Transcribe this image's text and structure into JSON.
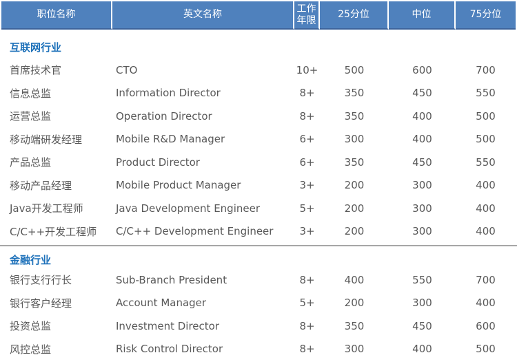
{
  "colors": {
    "header_bg": "#4f81bd",
    "header_text": "#ffffff",
    "header_bottom_border": "#3d649b",
    "section_title_text": "#1c70b9",
    "body_text": "#595959",
    "divider": "#a6a6a6",
    "background": "#ffffff"
  },
  "table": {
    "columns": [
      {
        "label": "职位名称"
      },
      {
        "label": "英文名称"
      },
      {
        "label": "工作年限"
      },
      {
        "label": "25分位"
      },
      {
        "label": "中位"
      },
      {
        "label": "75分位"
      }
    ],
    "sections": [
      {
        "title": "互联网行业",
        "rows": [
          [
            "首席技术官",
            "CTO",
            "10+",
            "500",
            "600",
            "700"
          ],
          [
            "信息总监",
            "Information Director",
            "8+",
            "350",
            "450",
            "550"
          ],
          [
            "运营总监",
            "Operation Director",
            "8+",
            "350",
            "400",
            "500"
          ],
          [
            "移动端研发经理",
            "Mobile R&D Manager",
            "6+",
            "300",
            "400",
            "500"
          ],
          [
            "产品总监",
            "Product Director",
            "6+",
            "350",
            "450",
            "550"
          ],
          [
            "移动产品经理",
            "Mobile Product Manager",
            "3+",
            "200",
            "300",
            "400"
          ],
          [
            "Java开发工程师",
            "Java Development Engineer",
            "5+",
            "200",
            "300",
            "400"
          ],
          [
            "C/C++开发工程师",
            "C/C++ Development Engineer",
            "3+",
            "200",
            "300",
            "400"
          ]
        ]
      },
      {
        "title": "金融行业",
        "rows": [
          [
            "银行支行行长",
            "Sub-Branch President",
            "8+",
            "400",
            "550",
            "700"
          ],
          [
            "银行客户经理",
            "Account Manager",
            "5+",
            "200",
            "300",
            "400"
          ],
          [
            "投资总监",
            "Investment Director",
            "8+",
            "350",
            "450",
            "600"
          ],
          [
            "风控总监",
            "Risk Control Director",
            "8+",
            "300",
            "400",
            "500"
          ]
        ]
      }
    ]
  }
}
